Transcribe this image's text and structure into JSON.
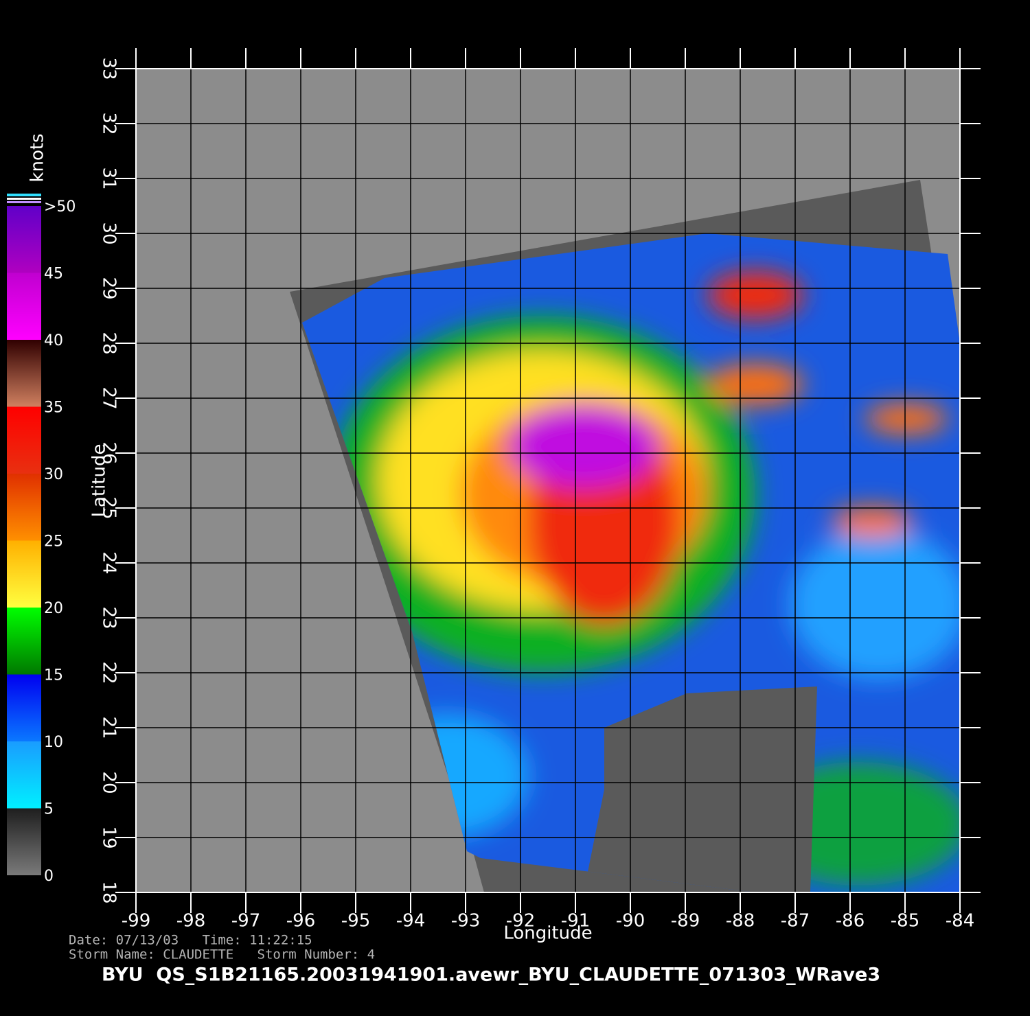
{
  "map": {
    "title": "BYU  QS_S1B21165.20031941901.avewr_BYU_CLAUDETTE_071303_WRave3",
    "x_label": "Longitude",
    "y_label": "Latitude",
    "xlim": [
      -99,
      -84
    ],
    "ylim": [
      18,
      33
    ],
    "xticks": [
      -99,
      -98,
      -97,
      -96,
      -95,
      -94,
      -93,
      -92,
      -91,
      -90,
      -89,
      -88,
      -87,
      -86,
      -85,
      -84
    ],
    "yticks": [
      18,
      19,
      20,
      21,
      22,
      23,
      24,
      25,
      26,
      27,
      28,
      29,
      30,
      31,
      32,
      33
    ],
    "info": [
      "Date: 07/13/03   Time: 11:22:15",
      "Storm Name: CLAUDETTE   Storm Number: 4"
    ],
    "colorbar": {
      "label": "knots",
      "ticks": [
        0,
        5,
        10,
        15,
        20,
        25,
        30,
        35,
        40,
        45,
        {
          "value": 50,
          "label": ">50"
        }
      ],
      "colors": [
        [
          "#7a7a7a",
          "#1e1e1e"
        ],
        [
          "#00f0ff",
          "#1a9cff"
        ],
        [
          "#0a78ff",
          "#0000f0"
        ],
        [
          "#007800",
          "#00ff00"
        ],
        [
          "#ffff40",
          "#ffb000"
        ],
        [
          "#ff9000",
          "#e03000"
        ],
        [
          "#e83010",
          "#ff0000"
        ],
        [
          "#d08060",
          "#300000"
        ],
        [
          "#ff00ff",
          "#c000d0"
        ],
        [
          "#b000c0",
          "#6000c8"
        ]
      ]
    }
  }
}
